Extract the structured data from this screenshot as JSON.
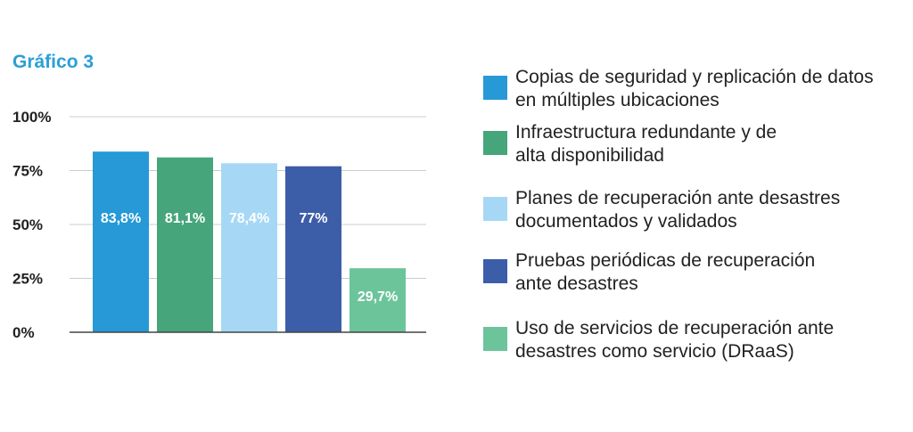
{
  "chart_data": {
    "type": "bar",
    "title": "Gráfico 3",
    "ylim": [
      0,
      100
    ],
    "yticks": [
      0,
      25,
      50,
      75,
      100
    ],
    "ytick_labels": [
      "0%",
      "25%",
      "50%",
      "75%",
      "100%"
    ],
    "grid": true,
    "legend_position": "right",
    "categories": [
      "Copias de seguridad y replicación de datos en múltiples ubicaciones",
      "Infraestructura redundante y de alta disponibilidad",
      "Planes de recuperación ante desastres documentados y validados",
      "Pruebas periódicas de recuperación ante desastres",
      "Uso de servicios de recuperación ante desastres como servicio (DRaaS)"
    ],
    "values": [
      83.8,
      81.1,
      78.4,
      77,
      29.7
    ],
    "value_labels": [
      "83,8%",
      "81,1%",
      "78,4%",
      "77%",
      "29,7%"
    ],
    "colors": [
      "#2699d6",
      "#46a57b",
      "#a6d8f5",
      "#3c5da8",
      "#6cc49b"
    ]
  },
  "legend": {
    "items": [
      {
        "line1": "Copias de seguridad y replicación de datos",
        "line2": "en múltiples ubicaciones",
        "color": "#2699d6"
      },
      {
        "line1": "Infraestructura redundante y de",
        "line2": "alta disponibilidad",
        "color": "#46a57b"
      },
      {
        "line1": "Planes de recuperación ante desastres",
        "line2": "documentados y validados",
        "color": "#a6d8f5"
      },
      {
        "line1": "Pruebas periódicas de recuperación",
        "line2": "ante desastres",
        "color": "#3c5da8"
      },
      {
        "line1": "Uso de servicios de recuperación ante",
        "line2": "desastres como servicio (DRaaS)",
        "color": "#6cc49b"
      }
    ]
  }
}
